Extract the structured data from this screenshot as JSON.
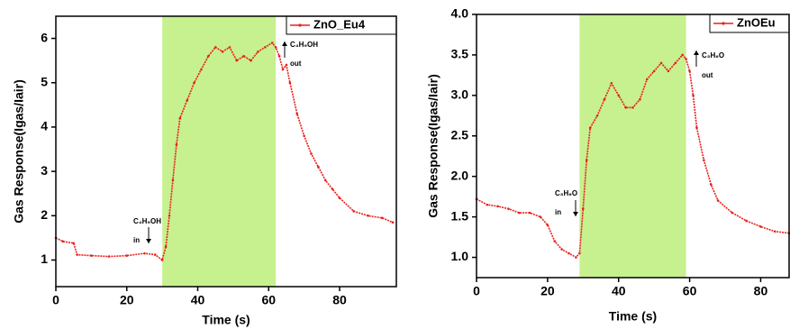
{
  "chart_data": [
    {
      "type": "line",
      "x_label": "Time (s)",
      "y_label": "Gas Response(Igas/Iair)",
      "xlim": [
        0,
        96
      ],
      "xticks": [
        0,
        20,
        40,
        60,
        80
      ],
      "ylim": [
        0.4,
        6.5
      ],
      "yticks": [
        1,
        2,
        3,
        4,
        5,
        6
      ],
      "shaded_region": {
        "x": [
          30,
          62
        ],
        "color": "#c7f08f"
      },
      "annotations": [
        "C₄H₉OH",
        "in",
        "C₄H₉OH",
        "out"
      ],
      "series": [
        {
          "name": "ZnO_Eu4",
          "color": "#e8201c",
          "x": [
            0,
            2,
            5,
            6,
            10,
            15,
            20,
            25,
            28,
            30,
            31,
            32,
            33,
            34,
            35,
            37,
            39,
            41,
            43,
            45,
            47,
            49,
            51,
            53,
            55,
            57,
            59,
            61,
            62,
            63,
            64,
            65,
            66,
            68,
            70,
            72,
            74,
            76,
            78,
            80,
            84,
            88,
            92,
            95
          ],
          "values": [
            1.5,
            1.42,
            1.38,
            1.12,
            1.1,
            1.08,
            1.1,
            1.15,
            1.12,
            1.0,
            1.3,
            2.0,
            2.8,
            3.6,
            4.2,
            4.6,
            5.0,
            5.3,
            5.6,
            5.8,
            5.7,
            5.8,
            5.5,
            5.6,
            5.5,
            5.7,
            5.8,
            5.9,
            5.8,
            5.6,
            5.3,
            5.4,
            5.0,
            4.3,
            3.8,
            3.4,
            3.1,
            2.8,
            2.6,
            2.4,
            2.1,
            2.0,
            1.95,
            1.85
          ]
        }
      ]
    },
    {
      "type": "line",
      "x_label": "Time (s)",
      "y_label": "Gas Response(Igas/Iair)",
      "xlim": [
        0,
        88
      ],
      "xticks": [
        0,
        20,
        40,
        60,
        80
      ],
      "ylim": [
        0.75,
        4.0
      ],
      "yticks": [
        {
          "value": 1,
          "label": "1.0"
        },
        {
          "value": 1.5,
          "label": "1.5"
        },
        {
          "value": 2,
          "label": "2.0"
        },
        {
          "value": 2.5,
          "label": "2.5"
        },
        {
          "value": 3,
          "label": "3.0"
        },
        {
          "value": 3.5,
          "label": "3.5"
        },
        {
          "value": 4,
          "label": "4.0"
        }
      ],
      "shaded_region": {
        "x": [
          29,
          59
        ],
        "color": "#c7f08f"
      },
      "annotations": [
        "C₃H₆O",
        "in",
        "C₃H₆O",
        "out"
      ],
      "series": [
        {
          "name": "ZnOEu",
          "color": "#e8201c",
          "x": [
            0,
            3,
            6,
            9,
            12,
            15,
            18,
            20,
            22,
            24,
            26,
            28,
            29,
            30,
            31,
            32,
            34,
            36,
            38,
            40,
            42,
            44,
            46,
            48,
            50,
            52,
            54,
            56,
            58,
            59,
            60,
            61,
            62,
            64,
            66,
            68,
            72,
            76,
            80,
            84,
            88
          ],
          "values": [
            1.72,
            1.65,
            1.63,
            1.6,
            1.55,
            1.55,
            1.5,
            1.4,
            1.2,
            1.1,
            1.05,
            1.0,
            1.05,
            1.6,
            2.2,
            2.6,
            2.75,
            2.95,
            3.15,
            3.0,
            2.85,
            2.85,
            2.95,
            3.2,
            3.3,
            3.4,
            3.3,
            3.4,
            3.5,
            3.45,
            3.3,
            3.0,
            2.6,
            2.2,
            1.9,
            1.7,
            1.55,
            1.45,
            1.38,
            1.32,
            1.3
          ]
        }
      ]
    }
  ]
}
